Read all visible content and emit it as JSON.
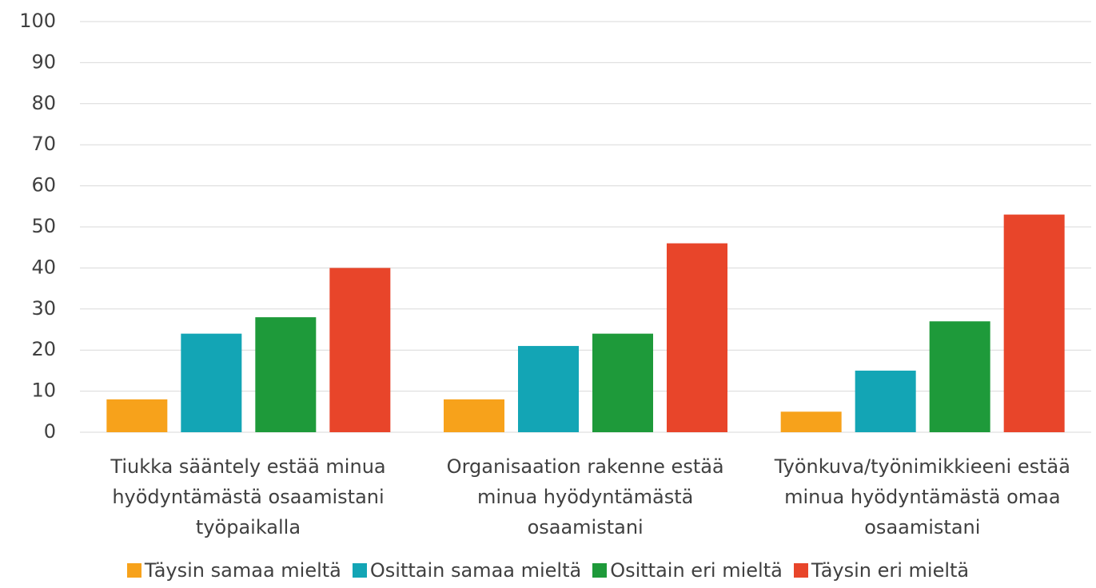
{
  "chart_data": {
    "type": "bar",
    "categories": [
      "Tiukka sääntely estää minua hyödyntämästä osaamistani työpaikalla",
      "Organisaation rakenne estää minua hyödyntämästä osaamistani",
      "Työnkuva/työnimikkieeni estää minua hyödyntämästä omaa osaamistani"
    ],
    "series": [
      {
        "name": "Täysin samaa mieltä",
        "color": "#f7a21b",
        "values": [
          8,
          8,
          5
        ]
      },
      {
        "name": "Osittain samaa mieltä",
        "color": "#13a5b5",
        "values": [
          24,
          21,
          15
        ]
      },
      {
        "name": "Osittain eri mieltä",
        "color": "#1e9a3a",
        "values": [
          28,
          24,
          27
        ]
      },
      {
        "name": "Täysin eri mieltä",
        "color": "#e8452a",
        "values": [
          40,
          46,
          53
        ]
      }
    ],
    "ylim": [
      0,
      100
    ],
    "yticks": [
      0,
      10,
      20,
      30,
      40,
      50,
      60,
      70,
      80,
      90,
      100
    ],
    "grid": true,
    "legend": "bottom"
  }
}
